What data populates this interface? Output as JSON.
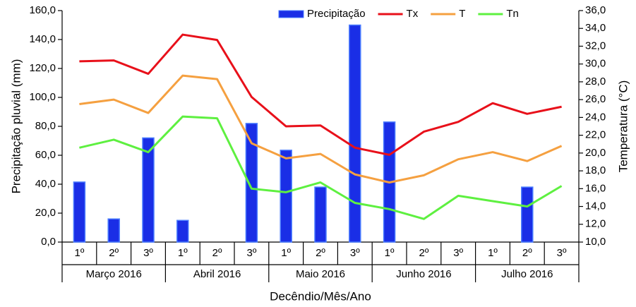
{
  "chart_data": {
    "type": "bar_line",
    "x_title": "Decêndio/Mês/Ano",
    "y_title": "Precipitação pluvial (mm)",
    "y2_title": "Temperatura (°C)",
    "categories": [
      "1º",
      "2º",
      "3º",
      "1º",
      "2º",
      "3º",
      "1º",
      "2º",
      "3º",
      "1º",
      "2º",
      "3º",
      "1º",
      "2º",
      "3º"
    ],
    "groups": [
      "Março 2016",
      "Abril 2016",
      "Maio 2016",
      "Junho 2016",
      "Julho 2016"
    ],
    "legend": "top",
    "series": [
      {
        "name": "Precipitação",
        "type": "bar",
        "color": "#1a2ee6",
        "values": [
          41.5,
          16,
          72,
          15,
          null,
          82,
          63.5,
          38,
          150,
          83,
          null,
          null,
          null,
          38,
          null
        ]
      },
      {
        "name": "Tx",
        "type": "line",
        "axis": "y2",
        "color": "#e8101a",
        "values": [
          30.3,
          30.4,
          28.9,
          33.3,
          32.7,
          26.3,
          23.0,
          23.1,
          20.6,
          19.8,
          22.4,
          23.5,
          25.6,
          24.4,
          25.2
        ]
      },
      {
        "name": "T",
        "type": "line",
        "axis": "y2",
        "color": "#f5a040",
        "values": [
          25.5,
          26.0,
          24.5,
          28.7,
          28.3,
          21.1,
          19.4,
          19.9,
          17.6,
          16.7,
          17.5,
          19.3,
          20.1,
          19.1,
          20.8
        ]
      },
      {
        "name": "Tn",
        "type": "line",
        "axis": "y2",
        "color": "#5ef040",
        "values": [
          20.6,
          21.5,
          20.1,
          24.1,
          23.9,
          16.0,
          15.6,
          16.7,
          14.4,
          13.7,
          12.6,
          15.2,
          14.6,
          14.0,
          16.3
        ]
      }
    ],
    "ylim": [
      0,
      160
    ],
    "yticks": [
      {
        "value": 0,
        "label": "0,0"
      },
      {
        "value": 20,
        "label": "20,0"
      },
      {
        "value": 40,
        "label": "40,0"
      },
      {
        "value": 60,
        "label": "60,0"
      },
      {
        "value": 80,
        "label": "80,0"
      },
      {
        "value": 100,
        "label": "100,0"
      },
      {
        "value": 120,
        "label": "120,0"
      },
      {
        "value": 140,
        "label": "140,0"
      },
      {
        "value": 160,
        "label": "160,0"
      }
    ],
    "y2lim": [
      10,
      36
    ],
    "y2ticks": [
      {
        "value": 10,
        "label": "10,0"
      },
      {
        "value": 12,
        "label": "12,0"
      },
      {
        "value": 14,
        "label": "14,0"
      },
      {
        "value": 16,
        "label": "16,0"
      },
      {
        "value": 18,
        "label": "18,0"
      },
      {
        "value": 20,
        "label": "20,0"
      },
      {
        "value": 22,
        "label": "22,0"
      },
      {
        "value": 24,
        "label": "24,0"
      },
      {
        "value": 26,
        "label": "26,0"
      },
      {
        "value": 28,
        "label": "28,0"
      },
      {
        "value": 30,
        "label": "30,0"
      },
      {
        "value": 32,
        "label": "32,0"
      },
      {
        "value": 34,
        "label": "34,0"
      },
      {
        "value": 36,
        "label": "36,0"
      }
    ]
  }
}
